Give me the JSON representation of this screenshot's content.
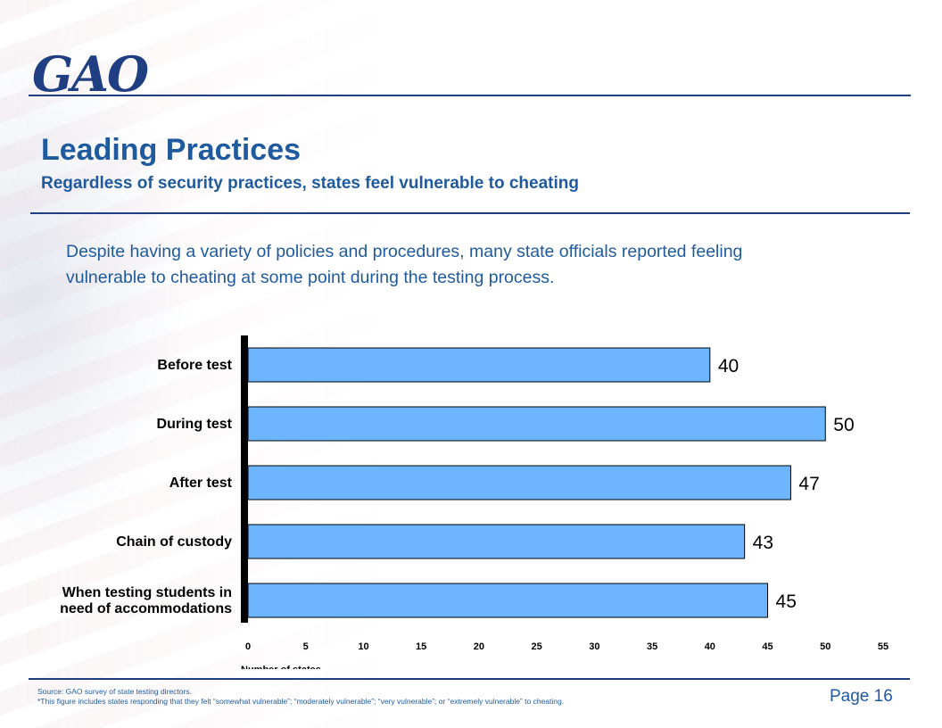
{
  "logo": {
    "text": "GAO"
  },
  "title": "Leading Practices",
  "subtitle": "Regardless of security practices, states feel vulnerable to cheating",
  "intro": "Despite having a variety of policies and procedures, many state officials reported feeling vulnerable to cheating at some point during the testing process.",
  "chart_data": {
    "type": "bar",
    "orientation": "horizontal",
    "categories": [
      "Before test",
      "During test",
      "After test",
      "Chain of custody",
      "When testing students in need of accommodations"
    ],
    "category_lines": [
      [
        "Before test"
      ],
      [
        "During test"
      ],
      [
        "After test"
      ],
      [
        "Chain of custody"
      ],
      [
        "When testing students in",
        "need of accommodations"
      ]
    ],
    "values": [
      40,
      50,
      47,
      43,
      45
    ],
    "data_labels": [
      "40",
      "50",
      "47",
      "43",
      "45"
    ],
    "xlabel": "Number of states",
    "xlim": [
      0,
      55
    ],
    "xticks": [
      "0",
      "5",
      "10",
      "15",
      "20",
      "25",
      "30",
      "35",
      "40",
      "45",
      "50",
      "55"
    ],
    "grid": false,
    "legend": "none",
    "bar_color": "#6db6ff"
  },
  "source": "Source: GAO survey of state testing directors.",
  "note": "*This figure includes states responding that they felt “somewhat vulnerable”; “moderately vulnerable”; “very vulnerable”; or “extremely vulnerable” to cheating.",
  "page_number": "Page 16",
  "colors": {
    "accent": "#1f5a9e",
    "rule": "#1f3f82"
  }
}
